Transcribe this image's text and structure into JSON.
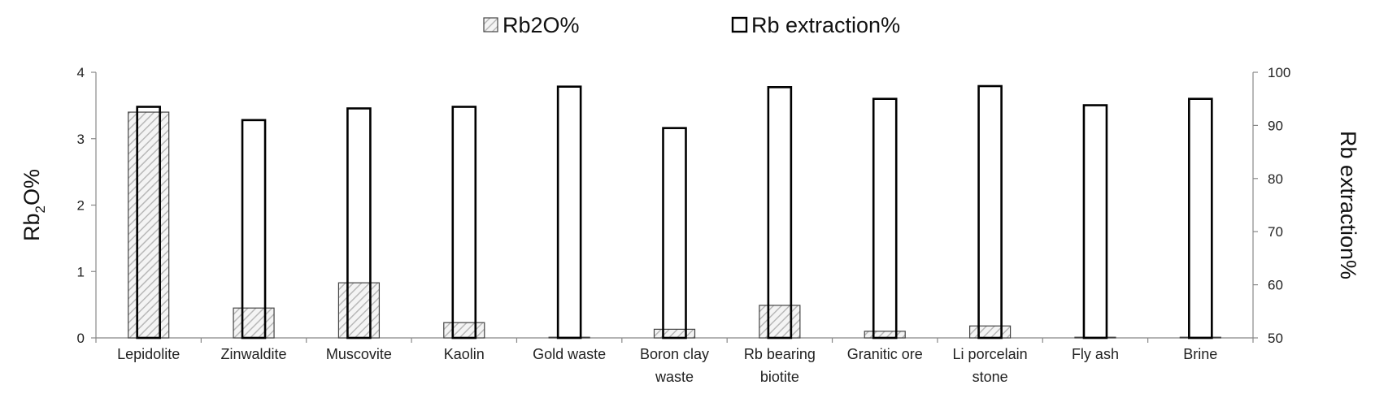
{
  "chart_data": {
    "type": "bar",
    "categories": [
      [
        "Lepidolite"
      ],
      [
        "Zinwaldite"
      ],
      [
        "Muscovite"
      ],
      [
        "Kaolin"
      ],
      [
        "Gold waste"
      ],
      [
        "Boron clay",
        "waste"
      ],
      [
        "Rb bearing",
        "biotite"
      ],
      [
        "Granitic ore"
      ],
      [
        "Li porcelain",
        "stone"
      ],
      [
        "Fly ash"
      ],
      [
        "Brine"
      ]
    ],
    "series": [
      {
        "name": "Rb2O%",
        "axis": "left",
        "pattern": "hatched",
        "values": [
          3.4,
          0.45,
          0.83,
          0.23,
          0.01,
          0.13,
          0.49,
          0.1,
          0.18,
          0.01,
          0.01
        ]
      },
      {
        "name": "Rb extraction%",
        "axis": "right",
        "pattern": "open",
        "values": [
          93.5,
          91,
          93.2,
          93.5,
          97.3,
          89.5,
          97.2,
          95,
          97.4,
          93.8,
          95
        ]
      }
    ],
    "y_left": {
      "label_main": "Rb",
      "label_sub": "2",
      "label_tail": "O%",
      "lim": [
        0,
        4
      ],
      "ticks": [
        "0",
        "1",
        "2",
        "3",
        "4"
      ]
    },
    "y_right": {
      "label": "Rb extraction%",
      "lim": [
        50,
        100
      ],
      "ticks": [
        "50",
        "60",
        "70",
        "80",
        "90",
        "100"
      ]
    },
    "legend": {
      "position": "top-center",
      "items": [
        "Rb2O%",
        "Rb extraction%"
      ]
    },
    "grid": false
  }
}
